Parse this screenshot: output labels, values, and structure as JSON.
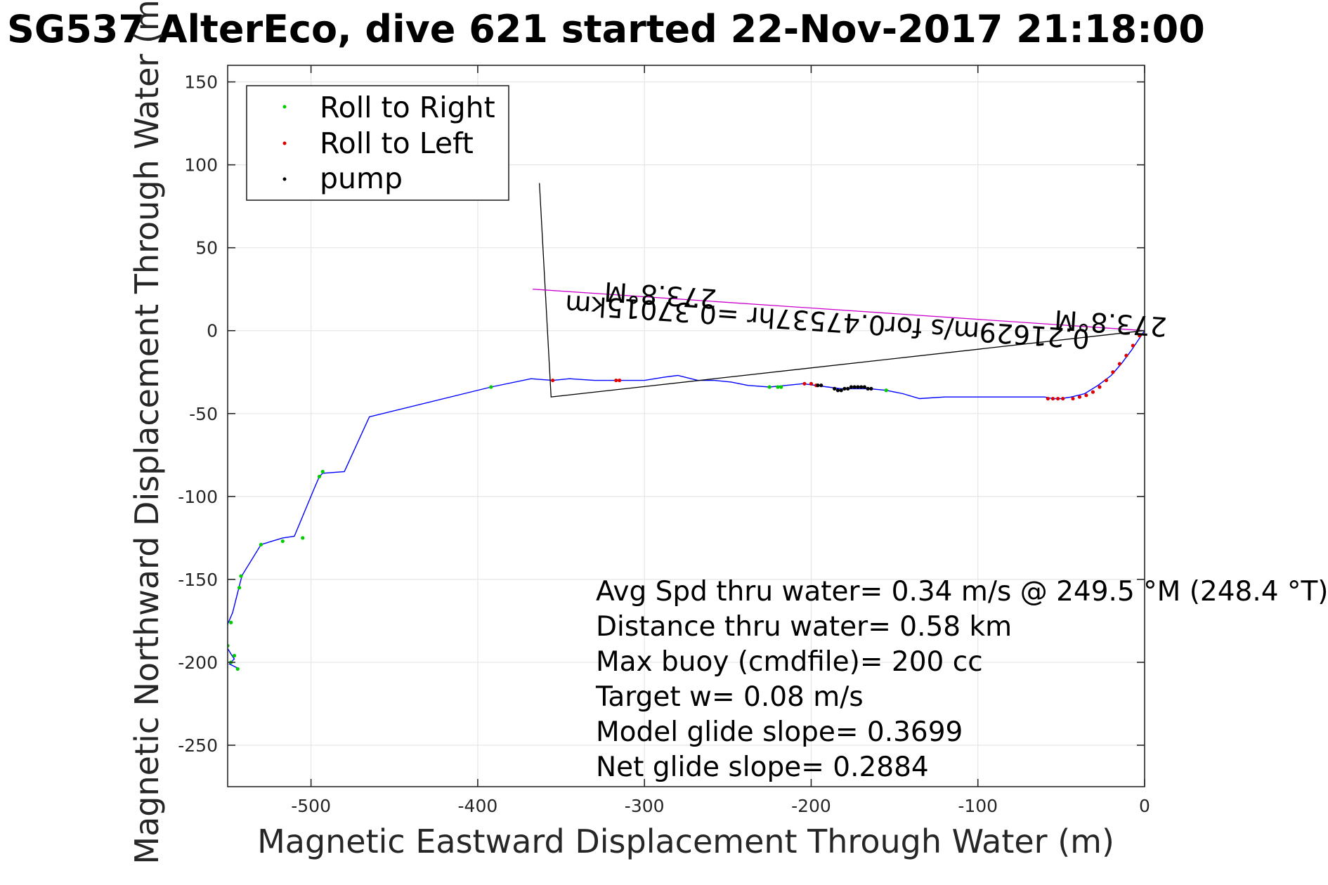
{
  "chart_data": {
    "type": "line",
    "title": "SG537 AlterEco, dive 621 started 22-Nov-2017 21:18:00",
    "xlabel": "Magnetic Eastward Displacement Through Water (m)",
    "ylabel": "Magnetic Northward Displacement Through Water (m)",
    "xlim": [
      -550,
      0
    ],
    "ylim": [
      -275,
      160
    ],
    "xticks": [
      -500,
      -400,
      -300,
      -200,
      -100,
      0
    ],
    "yticks": [
      150,
      100,
      50,
      0,
      -50,
      -100,
      -150,
      -200,
      -250
    ],
    "grid": true,
    "legend": {
      "placement": "top-left",
      "entries": [
        {
          "label": "Roll to Right",
          "color": "#00cc00"
        },
        {
          "label": "Roll to Left",
          "color": "#e00000"
        },
        {
          "label": "pump",
          "color": "#000000"
        }
      ]
    },
    "series": [
      {
        "color": "#0000ff",
        "x": [
          0,
          -4,
          -8,
          -14,
          -20,
          -28,
          -36,
          -44,
          -50,
          -55,
          -60,
          -100,
          -120,
          -135,
          -145,
          -155,
          -165,
          -175,
          -182,
          -190,
          -205,
          -215,
          -225,
          -238,
          -248,
          -258,
          -268,
          -280,
          -288,
          -300,
          -310,
          -320,
          -330,
          -345,
          -355,
          -368,
          -392,
          -465,
          -480,
          -493,
          -495,
          -498,
          -510,
          -517,
          -530,
          -541,
          -542,
          -543,
          -547,
          -550,
          -551,
          -548,
          -546,
          -549,
          -543
        ],
        "y": [
          0,
          -6,
          -12,
          -20,
          -27,
          -33,
          -38,
          -40,
          -41,
          -41,
          -40,
          -40,
          -40,
          -41,
          -38,
          -36,
          -35,
          -35,
          -35,
          -34,
          -32,
          -33,
          -34,
          -33,
          -31,
          -30,
          -30,
          -27,
          -28,
          -30,
          -30,
          -30,
          -30,
          -29,
          -30,
          -29,
          -34,
          -52,
          -85,
          -86,
          -88,
          -95,
          -124,
          -125,
          -129,
          -147,
          -150,
          -154,
          -170,
          -177,
          -190,
          -195,
          -198,
          -201,
          -204
        ]
      },
      {
        "color": "#000000",
        "x": [
          -363,
          -356,
          0
        ],
        "y": [
          89,
          -40,
          0
        ]
      },
      {
        "color": "#cc00cc",
        "x": [
          -367,
          0
        ],
        "y": [
          25,
          0
        ]
      }
    ],
    "roll_right_points": {
      "x": [
        -392,
        -155,
        -225,
        -220,
        -218,
        -493,
        -495,
        -505,
        -517,
        -530,
        -542,
        -543,
        -548,
        -550,
        -546,
        -548,
        -544
      ],
      "y": [
        -34,
        -36,
        -34,
        -34,
        -34,
        -85,
        -88,
        -125,
        -127,
        -129,
        -148,
        -155,
        -176,
        -190,
        -196,
        -200,
        -204
      ]
    },
    "roll_left_points": {
      "x": [
        -58,
        -55,
        -52,
        -49,
        -3,
        -7,
        -11,
        -15,
        -19,
        -23,
        -27,
        -31,
        -35,
        -39,
        -43,
        -355,
        -317,
        -315,
        -204,
        -200,
        -197
      ],
      "y": [
        -41,
        -41,
        -41,
        -41,
        -3,
        -9,
        -15,
        -20,
        -25,
        -30,
        -34,
        -37,
        -39,
        -40,
        -41,
        -30,
        -30,
        -30,
        -32,
        -32,
        -33
      ]
    },
    "pump_points": {
      "x": [
        -186,
        -184,
        -182,
        -180,
        -178,
        -176,
        -174,
        -172,
        -170,
        -168,
        -166,
        -164,
        -196,
        -194
      ],
      "y": [
        -35,
        -36,
        -36,
        -35,
        -35,
        -34,
        -34,
        -34,
        -34,
        -34,
        -35,
        -35,
        -33,
        -33
      ]
    },
    "heading_labels": [
      {
        "text": "273.8°M",
        "x": -290,
        "y": 27
      },
      {
        "text": "0.21629m/s for0.47537hr =0.37015km",
        "x": -190,
        "y": 11
      },
      {
        "text": "273.8°M",
        "x": -20,
        "y": 10
      }
    ],
    "stats": [
      "Avg Spd thru water=  0.34 m/s @ 249.5 °M (248.4 °T)",
      "Distance thru water=  0.58 km",
      "Max buoy (cmdfile)= 200 cc",
      "Target w= 0.08 m/s",
      "Model glide slope= 0.3699",
      "Net glide slope= 0.2884"
    ]
  }
}
